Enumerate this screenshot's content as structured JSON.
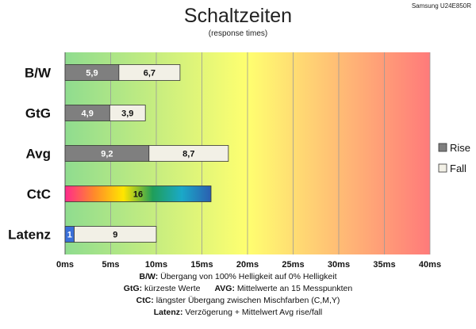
{
  "header": {
    "title": "Schaltzeiten",
    "subtitle": "(response times)",
    "model": "Samsung U24E850R"
  },
  "chart_data": {
    "type": "bar",
    "orientation": "horizontal",
    "stacked": true,
    "categories": [
      "B/W",
      "GtG",
      "Avg",
      "CtC",
      "Latenz"
    ],
    "series": [
      {
        "name": "Rise",
        "values": [
          5.9,
          4.9,
          9.2,
          null,
          1
        ],
        "color": "#7f7f7f"
      },
      {
        "name": "Fall",
        "values": [
          6.7,
          3.9,
          8.7,
          null,
          9
        ],
        "color": "#f2f0e6"
      }
    ],
    "single_values": {
      "CtC": 16
    },
    "latency_rise_color": "#3a6fd8",
    "ctc_gradient": [
      "#ff2a8c",
      "#ff8a2a",
      "#ffe600",
      "#1f9e5a",
      "#1aa9c8",
      "#2b5fb0"
    ],
    "x_ticks": [
      "0ms",
      "5ms",
      "10ms",
      "15ms",
      "20ms",
      "25ms",
      "30ms",
      "35ms",
      "40ms"
    ],
    "xlim": [
      0,
      40
    ],
    "x_unit": "ms",
    "background_gradient": [
      "#8fdc8f",
      "#ffff70",
      "#ff7a7a"
    ],
    "grid": true,
    "legend_position": "right",
    "legend": [
      {
        "name": "Rise",
        "color": "#7f7f7f"
      },
      {
        "name": "Fall",
        "color": "#f2f0e6"
      }
    ]
  },
  "notes": {
    "line1_key": "B/W:",
    "line1_text": " Übergang von 100% Helligkeit auf 0% Helligkeit",
    "line2_key_a": "GtG:",
    "line2_text_a": " kürzeste  Werte",
    "line2_key_b": "AVG:",
    "line2_text_b": " Mittelwerte  an 15 Messpunkten",
    "line3_key": "CtC:",
    "line3_text": " längster Übergang  zwischen Mischfarben (C,M,Y)",
    "line4_key": "Latenz:",
    "line4_text": " Verzögerung  + Mittelwert Avg rise/fall"
  }
}
